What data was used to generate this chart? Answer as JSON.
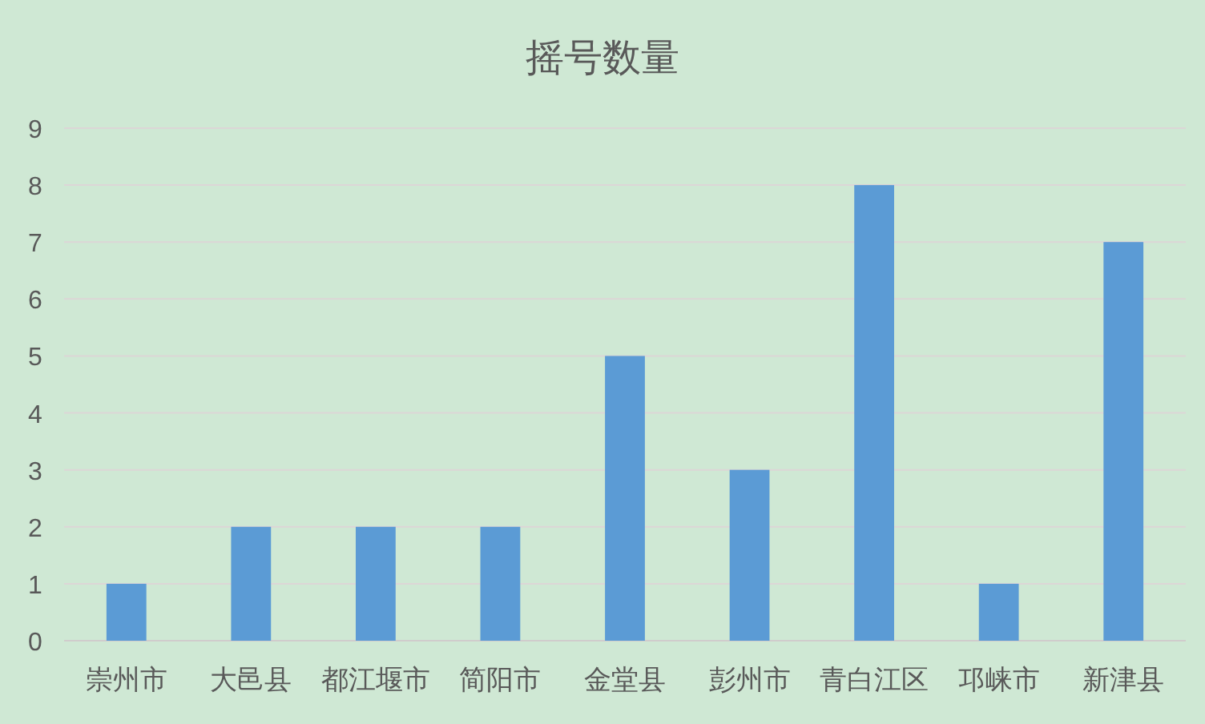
{
  "chart_data": {
    "type": "bar",
    "title": "摇号数量",
    "categories": [
      "崇州市",
      "大邑县",
      "都江堰市",
      "简阳市",
      "金堂县",
      "彭州市",
      "青白江区",
      "邛崃市",
      "新津县"
    ],
    "values": [
      1,
      2,
      2,
      2,
      5,
      3,
      8,
      1,
      7
    ],
    "color": "#5b9bd5",
    "ylim": [
      0,
      9
    ],
    "yticks": [
      0,
      1,
      2,
      3,
      4,
      5,
      6,
      7,
      8,
      9
    ],
    "grid": "y"
  }
}
